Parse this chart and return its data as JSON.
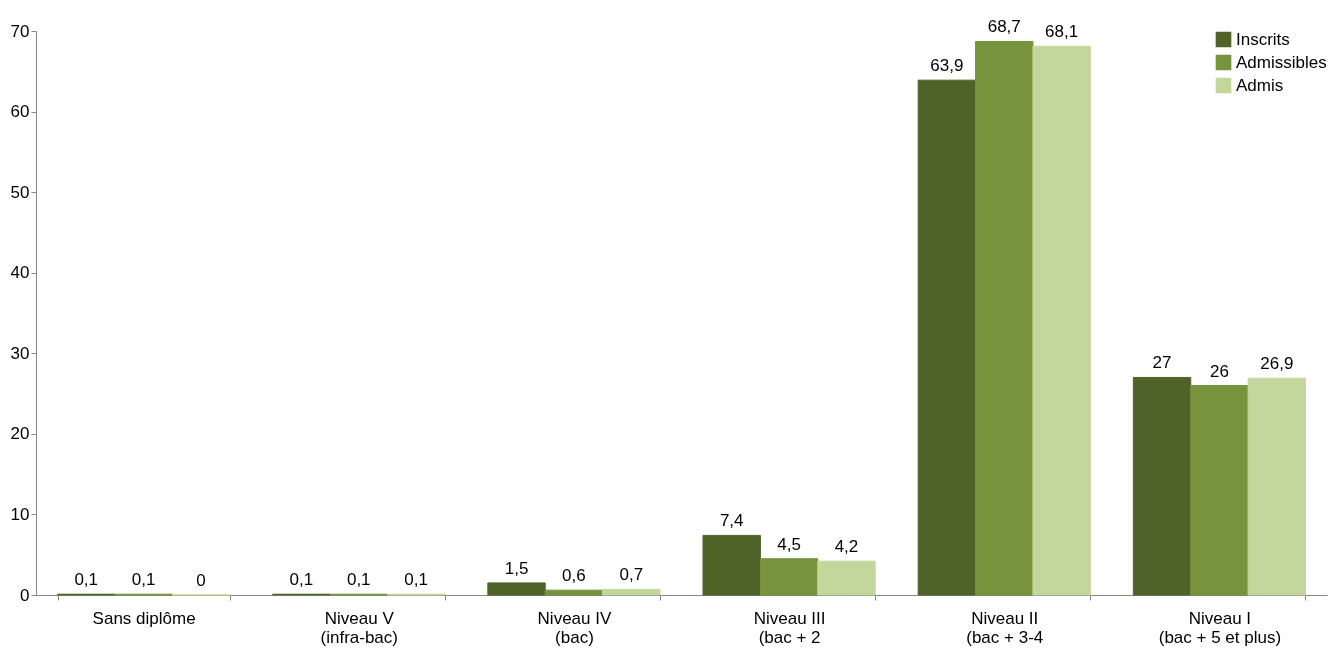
{
  "chart_data": {
    "type": "bar",
    "categories": [
      "Sans diplôme",
      "Niveau V\n(infra-bac)",
      "Niveau IV\n(bac)",
      "Niveau III\n(bac + 2",
      "Niveau II\n(bac + 3-4",
      "Niveau I\n(bac + 5 et plus)"
    ],
    "series": [
      {
        "name": "Inscrits",
        "color": "#4f6228",
        "values": [
          0.1,
          0.1,
          1.5,
          7.4,
          63.9,
          27
        ],
        "value_labels": [
          "0,1",
          "0,1",
          "1,5",
          "7,4",
          "63,9",
          "27"
        ]
      },
      {
        "name": "Admissibles",
        "color": "#77933c",
        "values": [
          0.1,
          0.1,
          0.6,
          4.5,
          68.7,
          26
        ],
        "value_labels": [
          "0,1",
          "0,1",
          "0,6",
          "4,5",
          "68,7",
          "26"
        ]
      },
      {
        "name": "Admis",
        "color": "#c3d69b",
        "values": [
          0,
          0.1,
          0.7,
          4.2,
          68.1,
          26.9
        ],
        "value_labels": [
          "0",
          "0,1",
          "0,7",
          "4,2",
          "68,1",
          "26,9"
        ]
      }
    ],
    "ylim": [
      0,
      70
    ],
    "yticks": [
      0,
      10,
      20,
      30,
      40,
      50,
      60,
      70
    ],
    "grid": false,
    "legend": "top right"
  }
}
